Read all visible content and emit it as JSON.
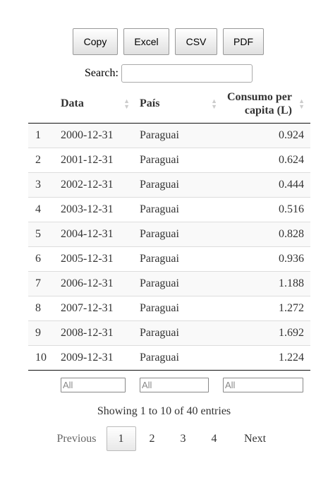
{
  "buttons": {
    "copy": "Copy",
    "excel": "Excel",
    "csv": "CSV",
    "pdf": "PDF"
  },
  "search": {
    "label": "Search:",
    "value": ""
  },
  "columns": {
    "data": "Data",
    "pais": "País",
    "consumo": "Consumo per capita (L)"
  },
  "sort_icon": "sort-arrows-icon",
  "rows": [
    {
      "idx": "1",
      "data": "2000-12-31",
      "pais": "Paraguai",
      "consumo": "0.924"
    },
    {
      "idx": "2",
      "data": "2001-12-31",
      "pais": "Paraguai",
      "consumo": "0.624"
    },
    {
      "idx": "3",
      "data": "2002-12-31",
      "pais": "Paraguai",
      "consumo": "0.444"
    },
    {
      "idx": "4",
      "data": "2003-12-31",
      "pais": "Paraguai",
      "consumo": "0.516"
    },
    {
      "idx": "5",
      "data": "2004-12-31",
      "pais": "Paraguai",
      "consumo": "0.828"
    },
    {
      "idx": "6",
      "data": "2005-12-31",
      "pais": "Paraguai",
      "consumo": "0.936"
    },
    {
      "idx": "7",
      "data": "2006-12-31",
      "pais": "Paraguai",
      "consumo": "1.188"
    },
    {
      "idx": "8",
      "data": "2007-12-31",
      "pais": "Paraguai",
      "consumo": "1.272"
    },
    {
      "idx": "9",
      "data": "2008-12-31",
      "pais": "Paraguai",
      "consumo": "1.692"
    },
    {
      "idx": "10",
      "data": "2009-12-31",
      "pais": "Paraguai",
      "consumo": "1.224"
    }
  ],
  "filters": {
    "placeholder": "All"
  },
  "info": "Showing 1 to 10 of 40 entries",
  "pagination": {
    "previous": "Previous",
    "pages": [
      "1",
      "2",
      "3",
      "4"
    ],
    "active": "1",
    "next": "Next"
  }
}
